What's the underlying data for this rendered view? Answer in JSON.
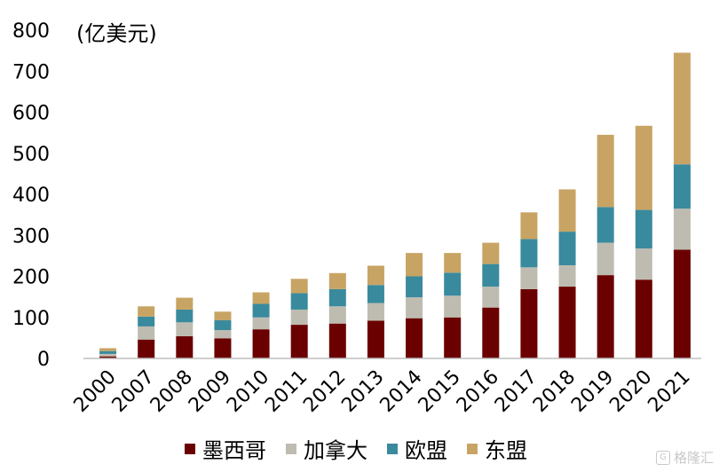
{
  "chart_data": {
    "type": "bar",
    "stacked": true,
    "unit_label": "(亿美元)",
    "categories": [
      "2000",
      "2007",
      "2008",
      "2009",
      "2010",
      "2011",
      "2012",
      "2013",
      "2014",
      "2015",
      "2016",
      "2017",
      "2018",
      "2019",
      "2020",
      "2021"
    ],
    "series": [
      {
        "name": "墨西哥",
        "color": "#6b0000",
        "values": [
          5,
          46,
          54,
          49,
          71,
          82,
          85,
          92,
          98,
          100,
          124,
          169,
          175,
          203,
          192,
          265
        ]
      },
      {
        "name": "加拿大",
        "color": "#bebcb0",
        "values": [
          6,
          32,
          34,
          20,
          29,
          37,
          42,
          43,
          51,
          53,
          51,
          53,
          52,
          79,
          76,
          100
        ]
      },
      {
        "name": "欧盟",
        "color": "#3a8a9e",
        "values": [
          7,
          24,
          31,
          24,
          33,
          40,
          42,
          44,
          51,
          56,
          55,
          69,
          82,
          87,
          94,
          108
        ]
      },
      {
        "name": "东盟",
        "color": "#c8a464",
        "values": [
          7,
          25,
          29,
          21,
          28,
          35,
          39,
          47,
          57,
          48,
          52,
          65,
          103,
          176,
          205,
          272
        ]
      }
    ],
    "ylim": [
      0,
      800
    ],
    "yticks": [
      0,
      100,
      200,
      300,
      400,
      500,
      600,
      700,
      800
    ],
    "grid": false,
    "legend_position": "bottom"
  },
  "watermark": {
    "icon": "G",
    "text": "格隆汇"
  }
}
